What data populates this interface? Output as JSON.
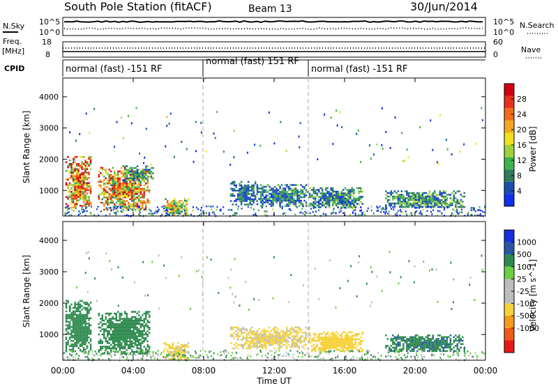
{
  "header": {
    "station": "South Pole Station (fitACF)",
    "beam": "Beam 13",
    "date": "30/Jun/2014"
  },
  "noise_panel": {
    "left_label": "N.Sky",
    "left_ticks": [
      "10^5",
      "10^0"
    ],
    "right_label": "N.Search",
    "right_ticks": [
      "10^5",
      "10^0"
    ]
  },
  "freq_panel": {
    "left_label_1": "Freq.",
    "left_label_2": "[MHz]",
    "left_ticks": [
      "18",
      "8"
    ],
    "right_label": "Nave",
    "right_ticks": [
      "60",
      "0"
    ]
  },
  "cpid": {
    "label": "CPID",
    "segments": [
      {
        "label": "normal (fast) -151 RF",
        "start": "00:00",
        "end": "08:00"
      },
      {
        "label": "normal (fast) 151 RF",
        "start": "08:00",
        "end": "14:00"
      },
      {
        "label": "normal (fast) -151 RF",
        "start": "14:00",
        "end": "24:00"
      }
    ]
  },
  "colors": {
    "power": [
      "#1030e8",
      "#1a4fb0",
      "#2e7b5e",
      "#3cb44a",
      "#9fd33c",
      "#f0e020",
      "#f5a623",
      "#ef6c1a",
      "#e8301e",
      "#d00010"
    ],
    "velocity": [
      "#e81818",
      "#ef5a18",
      "#f59a1e",
      "#f5d23c",
      "#bdbdbd",
      "#bdbdbd",
      "#6ad040",
      "#2e8a4e",
      "#2a56a8",
      "#1a2ee0"
    ]
  },
  "chart_data": [
    {
      "type": "heatmap",
      "title": "Power",
      "xlabel": "",
      "ylabel": "Slant Range [km]",
      "xlim": [
        "00:00",
        "24:00"
      ],
      "ylim": [
        180,
        4600
      ],
      "yticks": [
        1000,
        2000,
        3000,
        4000
      ],
      "colorbar": {
        "label": "Power [dB]",
        "range": [
          0,
          32
        ],
        "ticks": [
          4,
          8,
          12,
          16,
          20,
          24,
          28
        ]
      },
      "x_units": "hours UT",
      "regions": [
        {
          "t0": 0.15,
          "t1": 1.6,
          "r0": 450,
          "r1": 2100,
          "value": 22
        },
        {
          "t0": 2.0,
          "t1": 4.9,
          "r0": 400,
          "r1": 1750,
          "value": 20
        },
        {
          "t0": 3.4,
          "t1": 5.1,
          "r0": 1300,
          "r1": 1800,
          "value": 9
        },
        {
          "t0": 5.7,
          "t1": 7.1,
          "r0": 200,
          "r1": 750,
          "value": 14
        },
        {
          "t0": 9.5,
          "t1": 11.0,
          "r0": 550,
          "r1": 1300,
          "value": 6
        },
        {
          "t0": 11.0,
          "t1": 14.0,
          "r0": 500,
          "r1": 1200,
          "value": 7
        },
        {
          "t0": 14.0,
          "t1": 17.0,
          "r0": 450,
          "r1": 1100,
          "value": 8
        },
        {
          "t0": 18.3,
          "t1": 22.8,
          "r0": 450,
          "r1": 1000,
          "value": 9
        }
      ]
    },
    {
      "type": "heatmap",
      "title": "Velocity",
      "xlabel": "Time UT",
      "ylabel": "Slant Range [km]",
      "xlim": [
        "00:00",
        "24:00"
      ],
      "ylim": [
        180,
        4600
      ],
      "yticks": [
        1000,
        2000,
        3000,
        4000
      ],
      "xticks": [
        "00:00",
        "04:00",
        "08:00",
        "12:00",
        "16:00",
        "20:00",
        "00:00"
      ],
      "colorbar": {
        "label": "Velocity [m s^-1]",
        "ticks": [
          "1000",
          "500",
          "100",
          "25",
          "-25",
          "-100",
          "-500",
          "-1000"
        ]
      },
      "x_units": "hours UT",
      "regions": [
        {
          "t0": 0.15,
          "t1": 1.6,
          "r0": 450,
          "r1": 2100,
          "value": 300
        },
        {
          "t0": 2.0,
          "t1": 4.9,
          "r0": 400,
          "r1": 1750,
          "value": 200
        },
        {
          "t0": 5.7,
          "t1": 7.1,
          "r0": 200,
          "r1": 750,
          "value": -150
        },
        {
          "t0": 9.5,
          "t1": 14.0,
          "r0": 550,
          "r1": 1250,
          "value": -120
        },
        {
          "t0": 14.0,
          "t1": 17.0,
          "r0": 450,
          "r1": 1100,
          "value": -300
        },
        {
          "t0": 18.3,
          "t1": 22.8,
          "r0": 450,
          "r1": 1000,
          "value": 400
        }
      ]
    }
  ]
}
